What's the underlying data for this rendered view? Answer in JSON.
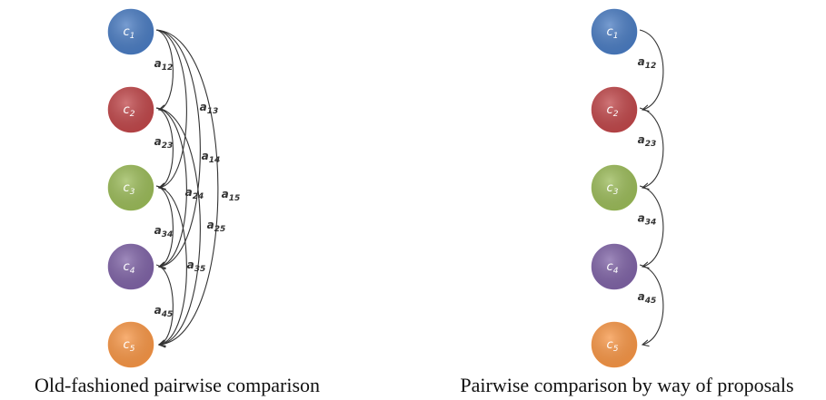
{
  "left_diagram": {
    "caption": "Old-fashioned pairwise comparison",
    "nodes": [
      {
        "base": "c",
        "sub": "1",
        "color": "#4a7cc2"
      },
      {
        "base": "c",
        "sub": "2",
        "color": "#c0474a"
      },
      {
        "base": "c",
        "sub": "3",
        "color": "#9bbb59"
      },
      {
        "base": "c",
        "sub": "4",
        "color": "#7f63a6"
      },
      {
        "base": "c",
        "sub": "5",
        "color": "#f79646"
      }
    ],
    "edges": [
      {
        "from": 0,
        "to": 1,
        "base": "a",
        "sub": "12"
      },
      {
        "from": 0,
        "to": 2,
        "base": "a",
        "sub": "13"
      },
      {
        "from": 0,
        "to": 3,
        "base": "a",
        "sub": "14"
      },
      {
        "from": 0,
        "to": 4,
        "base": "a",
        "sub": "15"
      },
      {
        "from": 1,
        "to": 2,
        "base": "a",
        "sub": "23"
      },
      {
        "from": 1,
        "to": 3,
        "base": "a",
        "sub": "24"
      },
      {
        "from": 1,
        "to": 4,
        "base": "a",
        "sub": "25"
      },
      {
        "from": 2,
        "to": 3,
        "base": "a",
        "sub": "34"
      },
      {
        "from": 2,
        "to": 4,
        "base": "a",
        "sub": "35"
      },
      {
        "from": 3,
        "to": 4,
        "base": "a",
        "sub": "45"
      }
    ]
  },
  "right_diagram": {
    "caption": "Pairwise comparison by way of proposals",
    "nodes": [
      {
        "base": "c",
        "sub": "1",
        "color": "#4a7cc2"
      },
      {
        "base": "c",
        "sub": "2",
        "color": "#c0474a"
      },
      {
        "base": "c",
        "sub": "3",
        "color": "#9bbb59"
      },
      {
        "base": "c",
        "sub": "4",
        "color": "#7f63a6"
      },
      {
        "base": "c",
        "sub": "5",
        "color": "#f79646"
      }
    ],
    "edges": [
      {
        "from": 0,
        "to": 1,
        "base": "a",
        "sub": "12"
      },
      {
        "from": 1,
        "to": 2,
        "base": "a",
        "sub": "23"
      },
      {
        "from": 2,
        "to": 3,
        "base": "a",
        "sub": "34"
      },
      {
        "from": 3,
        "to": 4,
        "base": "a",
        "sub": "45"
      }
    ]
  }
}
